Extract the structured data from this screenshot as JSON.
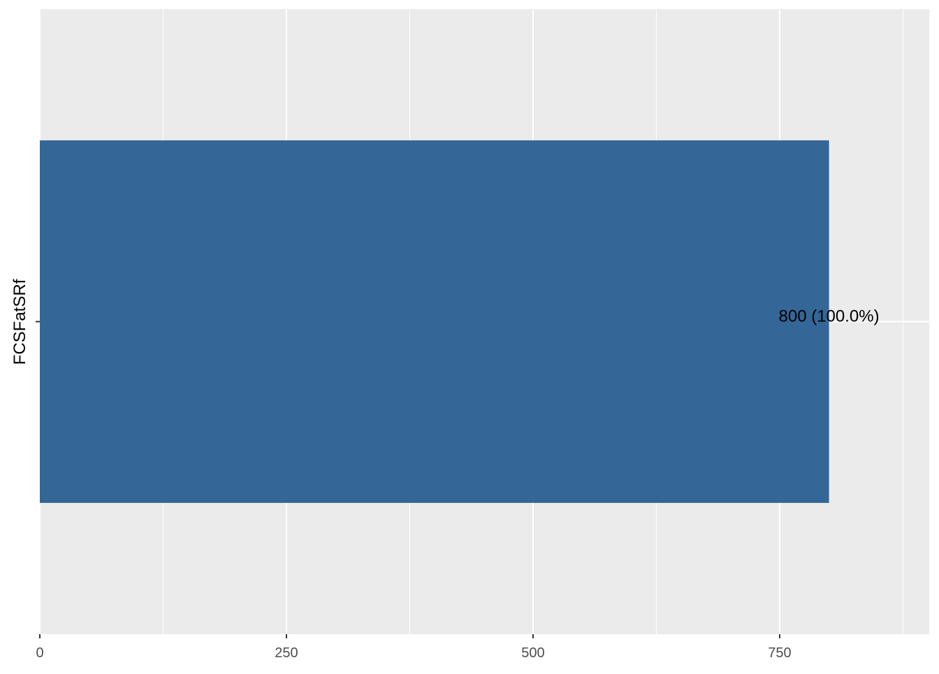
{
  "chart_data": {
    "type": "bar",
    "orientation": "horizontal",
    "categories": [
      ""
    ],
    "values": [
      800
    ],
    "data_labels": [
      "800 (100.0%)"
    ],
    "title": "",
    "xlabel": "",
    "ylabel": "FCSFatSRf",
    "xlim": [
      0,
      901.6
    ],
    "x_ticks": [
      0,
      250,
      500,
      750
    ],
    "x_tick_labels": [
      "0",
      "250",
      "500",
      "750"
    ],
    "x_minor_ticks": [
      125,
      375,
      625,
      875
    ],
    "grid": true,
    "legend": "none",
    "colors": {
      "bar": "#346797",
      "panel": "#EBEBEB",
      "grid": "#FFFFFF",
      "tick_text": "#4D4D4D"
    }
  }
}
